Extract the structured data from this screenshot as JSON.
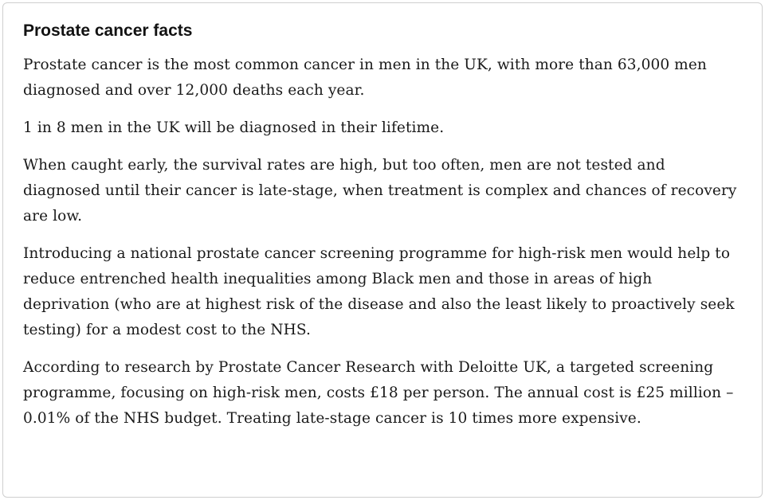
{
  "card": {
    "title": "Prostate cancer facts",
    "paragraphs": [
      "Prostate cancer is the most common cancer in men in the UK, with more than 63,000 men diagnosed and over 12,000 deaths each year.",
      "1 in 8 men in the UK will be diagnosed in their lifetime.",
      "When caught early, the survival rates are high, but too often, men are not tested and diagnosed until their cancer is late-stage, when treatment is complex and chances of recovery are low.",
      "Introducing a national prostate cancer screening programme for high-risk men would help to reduce entrenched health inequalities among Black men and those in areas of high deprivation (who are at highest risk of the disease and also the least likely to proactively seek testing) for a modest cost to the NHS.",
      "According to research by Prostate Cancer Research with Deloitte UK, a targeted screening programme, focusing on high-risk men, costs £18 per person. The annual cost is £25 million – 0.01% of the NHS budget. Treating late-stage cancer is 10 times more expensive."
    ],
    "colors": {
      "border": "#cfcfcf",
      "text": "#1a1a1a",
      "background": "#ffffff"
    }
  }
}
